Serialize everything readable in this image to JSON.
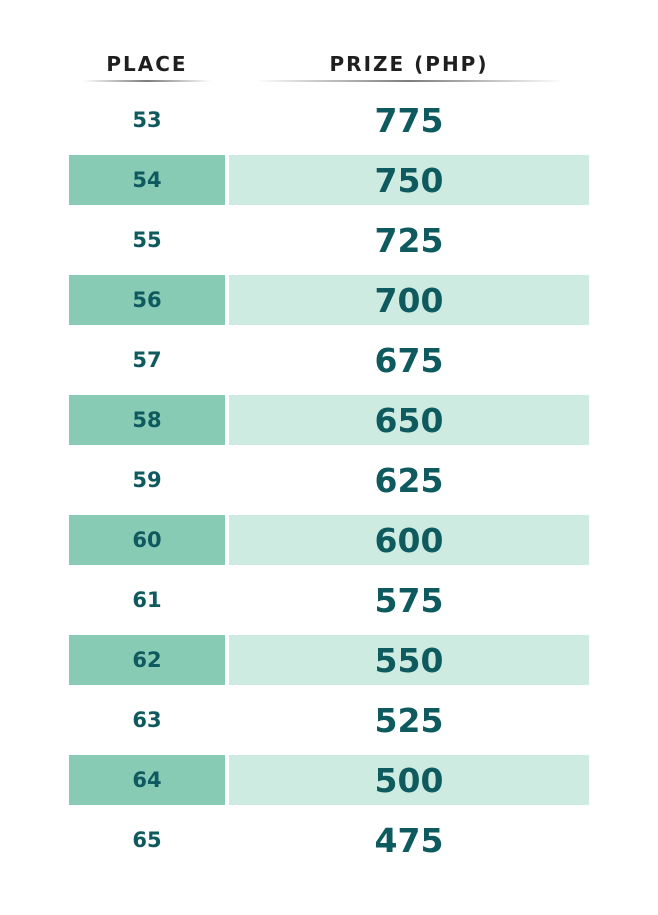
{
  "table": {
    "headers": {
      "place": "PLACE",
      "prize": "PRIZE (PHP)"
    },
    "rows": [
      {
        "place": "53",
        "prize": "775"
      },
      {
        "place": "54",
        "prize": "750"
      },
      {
        "place": "55",
        "prize": "725"
      },
      {
        "place": "56",
        "prize": "700"
      },
      {
        "place": "57",
        "prize": "675"
      },
      {
        "place": "58",
        "prize": "650"
      },
      {
        "place": "59",
        "prize": "625"
      },
      {
        "place": "60",
        "prize": "600"
      },
      {
        "place": "61",
        "prize": "575"
      },
      {
        "place": "62",
        "prize": "550"
      },
      {
        "place": "63",
        "prize": "525"
      },
      {
        "place": "64",
        "prize": "500"
      },
      {
        "place": "65",
        "prize": "475"
      }
    ]
  },
  "colors": {
    "text": "#0e5a5e",
    "header_text": "#1f1f1f",
    "shade_dark": "#88cbb5",
    "shade_light": "#cdebe1"
  }
}
